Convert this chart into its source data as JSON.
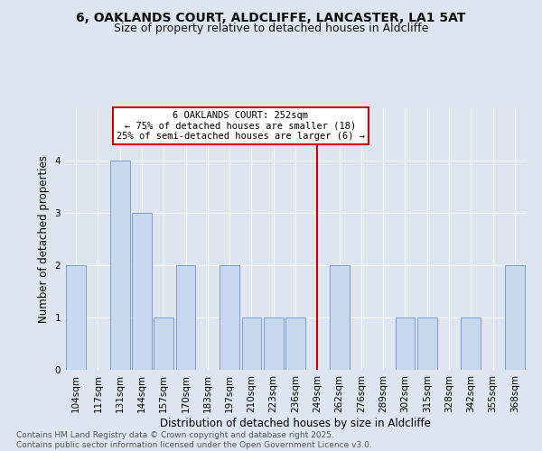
{
  "title1": "6, OAKLANDS COURT, ALDCLIFFE, LANCASTER, LA1 5AT",
  "title2": "Size of property relative to detached houses in Aldcliffe",
  "xlabel": "Distribution of detached houses by size in Aldcliffe",
  "ylabel": "Number of detached properties",
  "categories": [
    "104sqm",
    "117sqm",
    "131sqm",
    "144sqm",
    "157sqm",
    "170sqm",
    "183sqm",
    "197sqm",
    "210sqm",
    "223sqm",
    "236sqm",
    "249sqm",
    "262sqm",
    "276sqm",
    "289sqm",
    "302sqm",
    "315sqm",
    "328sqm",
    "342sqm",
    "355sqm",
    "368sqm"
  ],
  "values": [
    2,
    0,
    4,
    3,
    1,
    2,
    0,
    2,
    1,
    1,
    1,
    0,
    2,
    0,
    0,
    1,
    1,
    0,
    1,
    0,
    2
  ],
  "bar_color": "#c8d8ee",
  "bar_edge_color": "#7090c0",
  "ylim": [
    0,
    5
  ],
  "yticks": [
    0,
    1,
    2,
    3,
    4
  ],
  "ref_line_x": "249sqm",
  "ref_line_color": "#cc0000",
  "annotation_text": "6 OAKLANDS COURT: 252sqm\n← 75% of detached houses are smaller (18)\n25% of semi-detached houses are larger (6) →",
  "annotation_box_color": "#cc0000",
  "background_color": "#dde6f0",
  "plot_bg_color": "#dde6f0",
  "footer_text": "Contains HM Land Registry data © Crown copyright and database right 2025.\nContains public sector information licensed under the Open Government Licence v3.0.",
  "title_fontsize": 10,
  "subtitle_fontsize": 9,
  "tick_fontsize": 7.5,
  "ylabel_fontsize": 8.5,
  "xlabel_fontsize": 8.5,
  "footer_fontsize": 6.5
}
